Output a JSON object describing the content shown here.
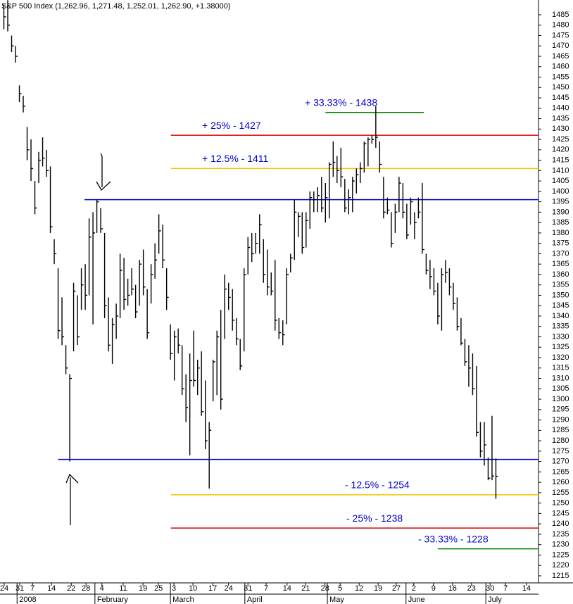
{
  "chart_data": {
    "type": "ohlc",
    "title": "S&P 500 Index (1,262.96, 1,271.48, 1,252.01, 1,262.90, +1.38000)",
    "color": "#000000",
    "high": [
      1490,
      1492,
      1475,
      1470,
      1451,
      1446,
      1431,
      1425,
      1405,
      1419,
      1426,
      1420,
      1412,
      1377,
      1363,
      1349,
      1326,
      1312,
      1356,
      1350,
      1363,
      1365,
      1387,
      1390,
      1396,
      1392,
      1380,
      1349,
      1339,
      1346,
      1370,
      1368,
      1358,
      1363,
      1355,
      1367,
      1372,
      1353,
      1365,
      1375,
      1389,
      1384,
      1363,
      1336,
      1333,
      1334,
      1326,
      1312,
      1322,
      1333,
      1319,
      1323,
      1309,
      1289,
      1319,
      1333,
      1343,
      1360,
      1356,
      1353,
      1339,
      1329,
      1363,
      1378,
      1380,
      1380,
      1389,
      1377,
      1372,
      1361,
      1367,
      1339,
      1338,
      1363,
      1370,
      1396,
      1390,
      1390,
      1390,
      1400,
      1400,
      1402,
      1407,
      1404,
      1414,
      1424,
      1417,
      1421,
      1406,
      1401,
      1407,
      1411,
      1414,
      1424,
      1426,
      1427,
      1441,
      1424,
      1407,
      1397,
      1390,
      1394,
      1407,
      1404,
      1394,
      1397,
      1390,
      1397,
      1404,
      1370,
      1367,
      1363,
      1356,
      1363,
      1367,
      1363,
      1356,
      1349,
      1339,
      1329,
      1326,
      1322,
      1316,
      1289,
      1289,
      1272,
      1292,
      1271.48
    ],
    "low": [
      1478,
      1477,
      1467,
      1462,
      1443,
      1438,
      1415,
      1405,
      1389,
      1404,
      1412,
      1407,
      1380,
      1365,
      1329,
      1326,
      1312,
      1270,
      1323,
      1326,
      1343,
      1343,
      1350,
      1336,
      1380,
      1380,
      1339,
      1323,
      1317,
      1329,
      1339,
      1343,
      1345,
      1350,
      1339,
      1345,
      1350,
      1329,
      1346,
      1358,
      1370,
      1363,
      1343,
      1319,
      1309,
      1322,
      1302,
      1289,
      1273,
      1306,
      1302,
      1292,
      1276,
      1257,
      1299,
      1302,
      1295,
      1329,
      1343,
      1333,
      1326,
      1314,
      1323,
      1360,
      1366,
      1370,
      1370,
      1356,
      1350,
      1350,
      1333,
      1329,
      1326,
      1336,
      1361,
      1367,
      1378,
      1370,
      1373,
      1382,
      1390,
      1390,
      1390,
      1385,
      1387,
      1407,
      1404,
      1402,
      1390,
      1389,
      1390,
      1399,
      1404,
      1409,
      1412,
      1423,
      1421,
      1409,
      1387,
      1389,
      1373,
      1380,
      1390,
      1387,
      1377,
      1384,
      1377,
      1387,
      1370,
      1360,
      1353,
      1350,
      1336,
      1333,
      1356,
      1350,
      1343,
      1333,
      1326,
      1316,
      1306,
      1302,
      1282,
      1272,
      1268,
      1261,
      1261,
      1252.01
    ],
    "close": [
      1484,
      1480,
      1470,
      1465,
      1447,
      1441,
      1420,
      1411,
      1392,
      1415,
      1416,
      1410,
      1383,
      1370,
      1333,
      1330,
      1315,
      1310,
      1352,
      1330,
      1355,
      1350,
      1378,
      1380,
      1395,
      1382,
      1345,
      1326,
      1336,
      1340,
      1362,
      1348,
      1350,
      1353,
      1342,
      1365,
      1354,
      1332,
      1360,
      1367,
      1381,
      1367,
      1349,
      1322,
      1330,
      1326,
      1305,
      1296,
      1309,
      1309,
      1315,
      1294,
      1280,
      1285,
      1318,
      1330,
      1300,
      1353,
      1349,
      1338,
      1329,
      1316,
      1360,
      1373,
      1370,
      1375,
      1384,
      1360,
      1354,
      1352,
      1338,
      1332,
      1331,
      1360,
      1368,
      1390,
      1388,
      1373,
      1386,
      1397,
      1396,
      1398,
      1392,
      1397,
      1413,
      1414,
      1410,
      1407,
      1392,
      1397,
      1405,
      1408,
      1411,
      1423,
      1425,
      1425,
      1426,
      1413,
      1390,
      1391,
      1375,
      1390,
      1404,
      1390,
      1379,
      1395,
      1385,
      1390,
      1372,
      1362,
      1359,
      1352,
      1340,
      1360,
      1361,
      1354,
      1346,
      1335,
      1327,
      1318,
      1315,
      1305,
      1284,
      1275,
      1278,
      1262,
      1263,
      1262.9
    ],
    "xlim": [
      -1,
      138
    ],
    "xticks": [
      {
        "value": 0.1,
        "label": "24"
      },
      {
        "value": 4.1,
        "label": "31"
      },
      {
        "value": 7.4,
        "label": "7"
      },
      {
        "value": 12.3,
        "label": "14"
      },
      {
        "value": 17.4,
        "label": "22"
      },
      {
        "value": 21.2,
        "label": "28"
      },
      {
        "value": 25.3,
        "label": "4"
      },
      {
        "value": 30.8,
        "label": "11"
      },
      {
        "value": 35.9,
        "label": "19"
      },
      {
        "value": 39.9,
        "label": "25"
      },
      {
        "value": 43.9,
        "label": "3"
      },
      {
        "value": 48.8,
        "label": "10"
      },
      {
        "value": 53.9,
        "label": "17"
      },
      {
        "value": 58.0,
        "label": "24"
      },
      {
        "value": 63.0,
        "label": "31"
      },
      {
        "value": 67.7,
        "label": "7"
      },
      {
        "value": 73.1,
        "label": "14"
      },
      {
        "value": 77.9,
        "label": "21"
      },
      {
        "value": 82.9,
        "label": "28"
      },
      {
        "value": 86.8,
        "label": "5"
      },
      {
        "value": 91.7,
        "label": "12"
      },
      {
        "value": 96.6,
        "label": "19"
      },
      {
        "value": 101.3,
        "label": "27"
      },
      {
        "value": 105.8,
        "label": "2"
      },
      {
        "value": 110.9,
        "label": "9"
      },
      {
        "value": 115.8,
        "label": "16"
      },
      {
        "value": 120.7,
        "label": "23"
      },
      {
        "value": 125.5,
        "label": "30"
      },
      {
        "value": 129.5,
        "label": "7"
      },
      {
        "value": 134.9,
        "label": "14"
      }
    ],
    "months": [
      {
        "value": 3.4,
        "label": "2008"
      },
      {
        "value": 23.5,
        "label": "February"
      },
      {
        "value": 43,
        "label": "March"
      },
      {
        "value": 62.2,
        "label": "April"
      },
      {
        "value": 83.5,
        "label": "May"
      },
      {
        "value": 103.8,
        "label": "June"
      },
      {
        "value": 124.4,
        "label": "July"
      }
    ],
    "ylim": [
      1211.6,
      1492.1
    ],
    "yticks": [
      1215,
      1220,
      1225,
      1230,
      1235,
      1240,
      1245,
      1250,
      1255,
      1260,
      1265,
      1270,
      1275,
      1280,
      1285,
      1290,
      1295,
      1300,
      1305,
      1310,
      1315,
      1320,
      1325,
      1330,
      1335,
      1340,
      1345,
      1350,
      1355,
      1360,
      1365,
      1370,
      1375,
      1380,
      1385,
      1390,
      1395,
      1400,
      1405,
      1410,
      1415,
      1420,
      1425,
      1430,
      1435,
      1440,
      1445,
      1450,
      1455,
      1460,
      1465,
      1470,
      1475,
      1480,
      1485
    ],
    "levels": [
      {
        "value": 1438,
        "color": "#008000",
        "label": "+ 33.33% - 1438",
        "xrange": [
          83,
          108.4
        ]
      },
      {
        "value": 1427,
        "color": "#e00000",
        "label": "+ 25% - 1427",
        "xrange": [
          43.1,
          138
        ]
      },
      {
        "value": 1411,
        "color": "#f5c400",
        "label": "+ 12.5% - 1411",
        "xrange": [
          43.1,
          138
        ]
      },
      {
        "value": 1396,
        "color": "#0000cc",
        "xrange": [
          20.8,
          138
        ]
      },
      {
        "value": 1271,
        "color": "#0000cc",
        "xrange": [
          14,
          138
        ]
      },
      {
        "value": 1254,
        "color": "#f5c400",
        "label": "- 12.5% - 1254",
        "xrange": [
          43.1,
          138
        ]
      },
      {
        "value": 1238,
        "color": "#e00000",
        "label": "- 25% - 1238",
        "xrange": [
          43.1,
          138
        ]
      },
      {
        "value": 1228,
        "color": "#008000",
        "label": "- 33.33% - 1228",
        "xrange": [
          112,
          138
        ]
      }
    ]
  }
}
